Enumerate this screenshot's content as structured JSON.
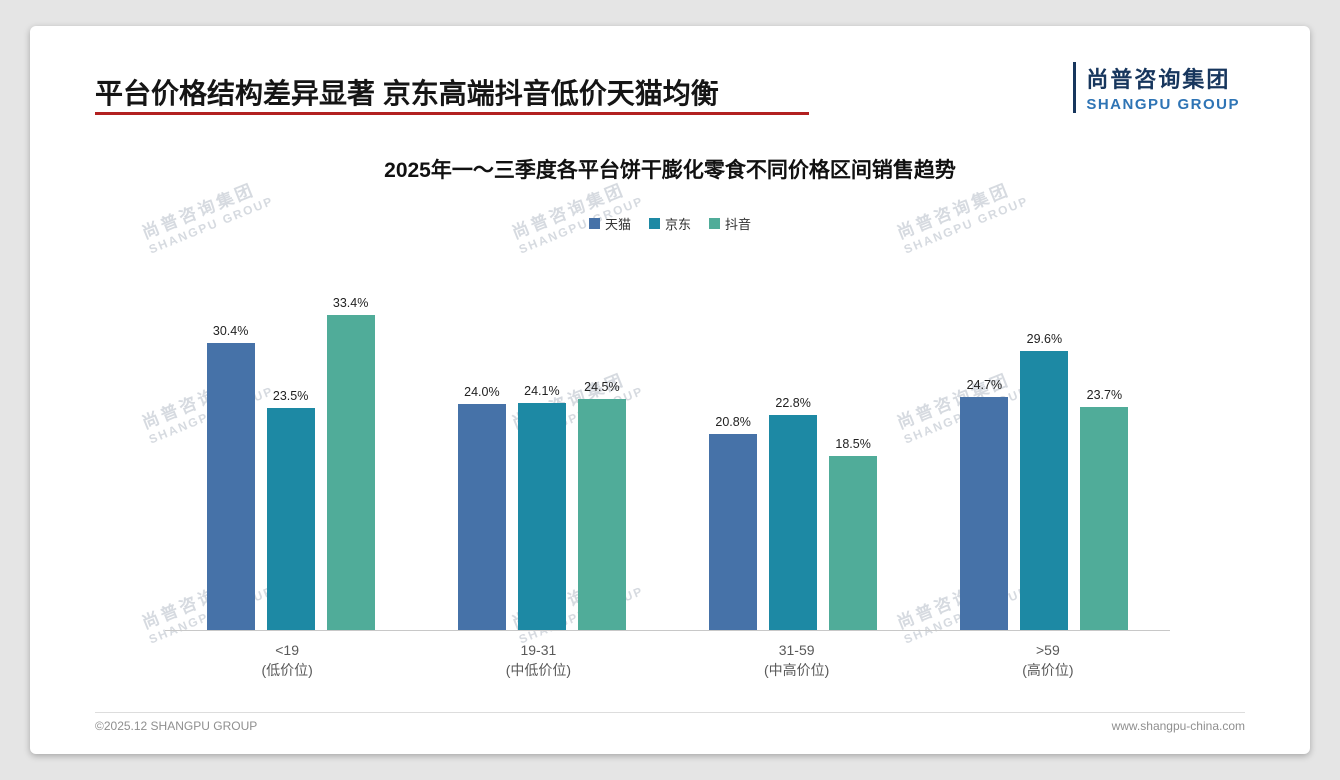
{
  "slide": {
    "title": "平台价格结构差异显著 京东高端抖音低价天猫均衡",
    "logo": {
      "cn": "尚普咨询集团",
      "en": "SHANGPU GROUP"
    },
    "watermark": {
      "cn": "尚普咨询集团",
      "en": "SHANGPU GROUP"
    },
    "footer": {
      "left": "©2025.12 SHANGPU GROUP",
      "right": "www.shangpu-china.com"
    }
  },
  "chart_data": {
    "type": "bar",
    "title": "2025年一～三季度各平台饼干膨化零食不同价格区间销售趋势",
    "categories": [
      {
        "range": "<19",
        "tier": "(低价位)"
      },
      {
        "range": "19-31",
        "tier": "(中低价位)"
      },
      {
        "range": "31-59",
        "tier": "(中高价位)"
      },
      {
        "range": ">59",
        "tier": "(高价位)"
      }
    ],
    "series": [
      {
        "name": "天猫",
        "color": "#4672a8",
        "values": [
          30.4,
          24.0,
          20.8,
          24.7
        ]
      },
      {
        "name": "京东",
        "color": "#1d89a4",
        "values": [
          23.5,
          24.1,
          22.8,
          29.6
        ]
      },
      {
        "name": "抖音",
        "color": "#50ac99",
        "values": [
          33.4,
          24.5,
          18.5,
          23.7
        ]
      }
    ],
    "value_suffix": "%",
    "ylim": [
      0,
      35
    ],
    "grid": false,
    "legend_position": "top"
  }
}
